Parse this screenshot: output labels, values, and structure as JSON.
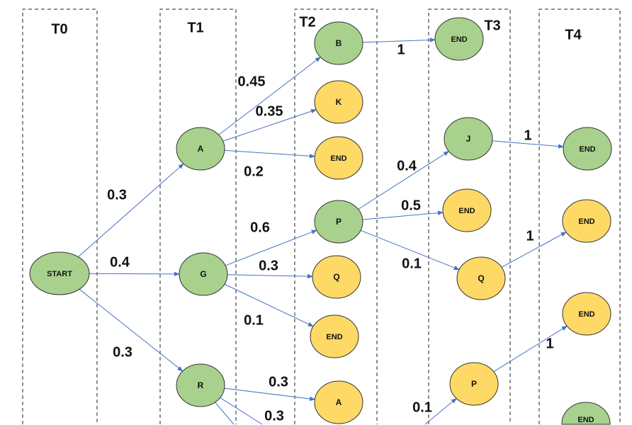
{
  "colors": {
    "green": "#A9D18E",
    "yellow": "#FFD966",
    "edge": "#4472C4"
  },
  "columns": [
    "T0",
    "T1",
    "T2",
    "T3",
    "T4"
  ],
  "nodes": [
    {
      "label": "START",
      "color": "green"
    },
    {
      "label": "A",
      "color": "green"
    },
    {
      "label": "G",
      "color": "green"
    },
    {
      "label": "R",
      "color": "green"
    },
    {
      "label": "B",
      "color": "green"
    },
    {
      "label": "K",
      "color": "yellow"
    },
    {
      "label": "END",
      "color": "yellow"
    },
    {
      "label": "P",
      "color": "green"
    },
    {
      "label": "Q",
      "color": "yellow"
    },
    {
      "label": "END",
      "color": "yellow"
    },
    {
      "label": "A",
      "color": "yellow"
    },
    {
      "label": "END",
      "color": "green"
    },
    {
      "label": "J",
      "color": "green"
    },
    {
      "label": "END",
      "color": "yellow"
    },
    {
      "label": "Q",
      "color": "yellow"
    },
    {
      "label": "P",
      "color": "yellow"
    },
    {
      "label": "END",
      "color": "green"
    },
    {
      "label": "END",
      "color": "yellow"
    },
    {
      "label": "END",
      "color": "yellow"
    },
    {
      "label": "END",
      "color": "green"
    }
  ],
  "edges": [
    {
      "from": 0,
      "to": 1,
      "weight": "0.3"
    },
    {
      "from": 0,
      "to": 2,
      "weight": "0.4"
    },
    {
      "from": 0,
      "to": 3,
      "weight": "0.3"
    },
    {
      "from": 1,
      "to": 4,
      "weight": "0.45"
    },
    {
      "from": 1,
      "to": 5,
      "weight": "0.35"
    },
    {
      "from": 1,
      "to": 6,
      "weight": "0.2"
    },
    {
      "from": 2,
      "to": 7,
      "weight": "0.6"
    },
    {
      "from": 2,
      "to": 8,
      "weight": "0.3"
    },
    {
      "from": 2,
      "to": 9,
      "weight": "0.1"
    },
    {
      "from": 3,
      "to": 10,
      "weight": "0.3"
    },
    {
      "from": 3,
      "to": null,
      "weight": "0.3"
    },
    {
      "from": 3,
      "to": null,
      "weight": ""
    },
    {
      "from": 4,
      "to": 11,
      "weight": "1"
    },
    {
      "from": 7,
      "to": 12,
      "weight": "0.4"
    },
    {
      "from": 7,
      "to": 13,
      "weight": "0.5"
    },
    {
      "from": 7,
      "to": 14,
      "weight": "0.1"
    },
    {
      "from": 12,
      "to": 16,
      "weight": "1"
    },
    {
      "from": 14,
      "to": 17,
      "weight": "1"
    },
    {
      "from": 15,
      "to": 18,
      "weight": "1"
    },
    {
      "from": null,
      "to": 15,
      "weight": "0.1"
    }
  ]
}
